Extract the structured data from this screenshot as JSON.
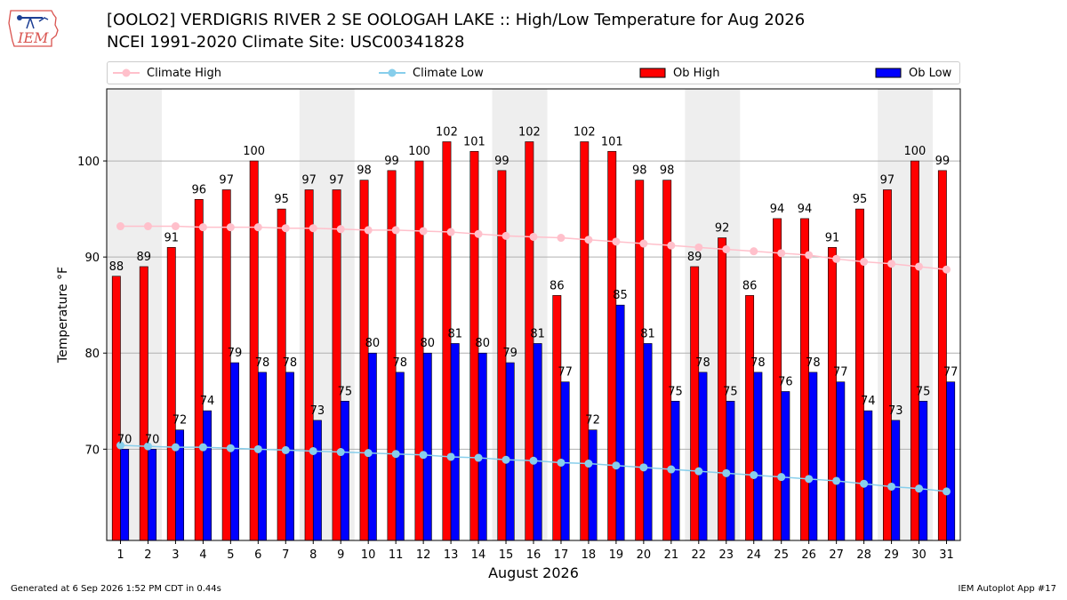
{
  "header": {
    "title_line1": "[OOLO2] VERDIGRIS RIVER 2 SE OOLOGAH LAKE :: High/Low Temperature for Aug 2026",
    "title_line2": "NCEI 1991-2020 Climate Site: USC00341828",
    "logo_text": "IEM"
  },
  "footer": {
    "generated": "Generated at 6 Sep 2026 1:52 PM CDT in 0.44s",
    "app": "IEM Autoplot App #17"
  },
  "chart_data": {
    "type": "bar",
    "title": "[OOLO2] VERDIGRIS RIVER 2 SE OOLOGAH LAKE :: High/Low Temperature for Aug 2026",
    "subtitle": "NCEI 1991-2020 Climate Site: USC00341828",
    "xlabel": "August 2026",
    "ylabel": "Temperature °F",
    "ylim": [
      60.5,
      107.5
    ],
    "yticks": [
      70,
      80,
      90,
      100
    ],
    "grid": true,
    "legend_position": "top",
    "categories": [
      "1",
      "2",
      "3",
      "4",
      "5",
      "6",
      "7",
      "8",
      "9",
      "10",
      "11",
      "12",
      "13",
      "14",
      "15",
      "16",
      "17",
      "18",
      "19",
      "20",
      "21",
      "22",
      "23",
      "24",
      "25",
      "26",
      "27",
      "28",
      "29",
      "30",
      "31"
    ],
    "weekend_days": [
      1,
      2,
      8,
      9,
      15,
      16,
      22,
      23,
      29,
      30
    ],
    "series": [
      {
        "name": "Climate High",
        "kind": "line",
        "color": "#ffc0cb",
        "values": [
          93.2,
          93.2,
          93.2,
          93.1,
          93.1,
          93.1,
          93.0,
          93.0,
          92.9,
          92.8,
          92.8,
          92.7,
          92.6,
          92.4,
          92.2,
          92.1,
          92.0,
          91.8,
          91.6,
          91.4,
          91.2,
          91.0,
          90.8,
          90.6,
          90.4,
          90.2,
          89.8,
          89.5,
          89.3,
          89.0,
          88.7
        ]
      },
      {
        "name": "Climate Low",
        "kind": "line",
        "color": "#87ceeb",
        "values": [
          70.4,
          70.3,
          70.2,
          70.2,
          70.1,
          70.0,
          69.9,
          69.8,
          69.7,
          69.6,
          69.5,
          69.4,
          69.2,
          69.1,
          68.9,
          68.8,
          68.6,
          68.5,
          68.3,
          68.1,
          67.9,
          67.7,
          67.5,
          67.3,
          67.1,
          66.9,
          66.7,
          66.4,
          66.1,
          65.9,
          65.6
        ]
      },
      {
        "name": "Ob High",
        "kind": "bar",
        "color": "#ff0000",
        "values": [
          88,
          89,
          91,
          96,
          97,
          100,
          95,
          97,
          97,
          98,
          99,
          100,
          102,
          101,
          99,
          102,
          86,
          102,
          101,
          98,
          98,
          89,
          92,
          86,
          94,
          94,
          91,
          95,
          97,
          100,
          99
        ]
      },
      {
        "name": "Ob Low",
        "kind": "bar",
        "color": "#0000ff",
        "values": [
          70,
          70,
          72,
          74,
          79,
          78,
          78,
          73,
          75,
          80,
          78,
          80,
          81,
          80,
          79,
          81,
          77,
          72,
          85,
          81,
          75,
          78,
          75,
          78,
          76,
          78,
          77,
          74,
          73,
          75,
          77
        ]
      }
    ]
  }
}
